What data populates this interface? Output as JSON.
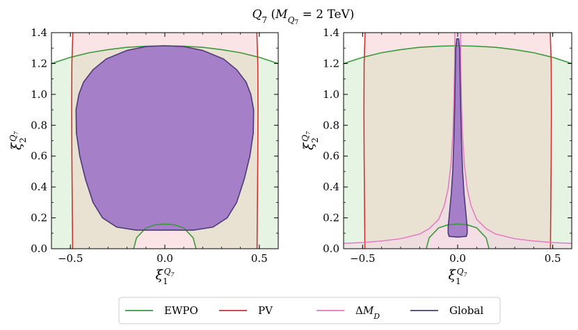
{
  "chart_data": {
    "title": "Q₇ (M_Q₇ = 2 TeV)",
    "legend": {
      "placement": "bottom-center",
      "entries": [
        {
          "key": "ewpo",
          "label": "EWPO",
          "color": "#3a9a3a"
        },
        {
          "key": "pv",
          "label": "PV",
          "color": "#cc3333"
        },
        {
          "key": "dmd",
          "label": "ΔM_D",
          "color": "#e377c2"
        },
        {
          "key": "global",
          "label": "Global",
          "color": "#4b3a75"
        }
      ]
    },
    "colors": {
      "ewpo_fill": "#e6f5e3",
      "pv_fill": "#fbe4e6",
      "overlap_fill": "#e9e2d3",
      "dmd_fill": "#f3d9e8",
      "global_fill": "#a57fc8"
    },
    "panels": [
      {
        "type": "contour",
        "name": "left",
        "xlabel": "ξ₁^{Q₇}",
        "ylabel": "ξ₂^{Q₇}",
        "xlim": [
          -0.6,
          0.6
        ],
        "ylim": [
          0.0,
          1.4
        ],
        "xticks": [
          -0.5,
          0.0,
          0.5
        ],
        "xtick_labels": [
          "−0.5",
          "0.0",
          "0.5"
        ],
        "yticks": [
          0.0,
          0.2,
          0.4,
          0.6,
          0.8,
          1.0,
          1.2,
          1.4
        ],
        "ytick_labels": [
          "0.0",
          "0.2",
          "0.4",
          "0.6",
          "0.8",
          "1.0",
          "1.2",
          "1.4"
        ],
        "ewpo_outer": [
          [
            -0.6,
            1.2
          ],
          [
            -0.5,
            1.24
          ],
          [
            -0.4,
            1.27
          ],
          [
            -0.3,
            1.29
          ],
          [
            -0.2,
            1.305
          ],
          [
            -0.1,
            1.312
          ],
          [
            0.0,
            1.315
          ],
          [
            0.1,
            1.312
          ],
          [
            0.2,
            1.305
          ],
          [
            0.3,
            1.29
          ],
          [
            0.4,
            1.27
          ],
          [
            0.5,
            1.24
          ],
          [
            0.6,
            1.2
          ]
        ],
        "ewpo_inner": [
          [
            -0.165,
            0.0
          ],
          [
            -0.15,
            0.07
          ],
          [
            -0.1,
            0.135
          ],
          [
            -0.05,
            0.155
          ],
          [
            0.0,
            0.16
          ],
          [
            0.05,
            0.155
          ],
          [
            0.1,
            0.135
          ],
          [
            0.15,
            0.07
          ],
          [
            0.165,
            0.0
          ]
        ],
        "pv_left": [
          [
            -0.488,
            0.0
          ],
          [
            -0.49,
            0.3
          ],
          [
            -0.492,
            0.6
          ],
          [
            -0.493,
            0.9
          ],
          [
            -0.492,
            1.2
          ],
          [
            -0.487,
            1.4
          ]
        ],
        "pv_right": [
          [
            0.488,
            0.0
          ],
          [
            0.49,
            0.3
          ],
          [
            0.492,
            0.6
          ],
          [
            0.493,
            0.9
          ],
          [
            0.492,
            1.2
          ],
          [
            0.487,
            1.4
          ]
        ],
        "dmd": null,
        "global": [
          [
            0.0,
            0.12
          ],
          [
            0.15,
            0.12
          ],
          [
            0.255,
            0.14
          ],
          [
            0.33,
            0.2
          ],
          [
            0.38,
            0.3
          ],
          [
            0.42,
            0.45
          ],
          [
            0.45,
            0.6
          ],
          [
            0.468,
            0.75
          ],
          [
            0.47,
            0.9
          ],
          [
            0.455,
            1.0
          ],
          [
            0.43,
            1.08
          ],
          [
            0.38,
            1.16
          ],
          [
            0.31,
            1.23
          ],
          [
            0.2,
            1.285
          ],
          [
            0.1,
            1.31
          ],
          [
            0.0,
            1.315
          ],
          [
            -0.1,
            1.31
          ],
          [
            -0.2,
            1.285
          ],
          [
            -0.31,
            1.23
          ],
          [
            -0.38,
            1.16
          ],
          [
            -0.43,
            1.08
          ],
          [
            -0.455,
            1.0
          ],
          [
            -0.47,
            0.9
          ],
          [
            -0.468,
            0.75
          ],
          [
            -0.45,
            0.6
          ],
          [
            -0.42,
            0.45
          ],
          [
            -0.38,
            0.3
          ],
          [
            -0.33,
            0.2
          ],
          [
            -0.255,
            0.14
          ],
          [
            -0.15,
            0.12
          ]
        ]
      },
      {
        "type": "contour",
        "name": "right",
        "xlabel": "ξ₁^{Q₇}",
        "ylabel": "ξ₂^{Q₇}",
        "xlim": [
          -0.6,
          0.6
        ],
        "ylim": [
          0.0,
          1.4
        ],
        "xticks": [
          -0.5,
          0.0,
          0.5
        ],
        "xtick_labels": [
          "−0.5",
          "0.0",
          "0.5"
        ],
        "yticks": [
          0.0,
          0.2,
          0.4,
          0.6,
          0.8,
          1.0,
          1.2,
          1.4
        ],
        "ytick_labels": [
          "0.0",
          "0.2",
          "0.4",
          "0.6",
          "0.8",
          "1.0",
          "1.2",
          "1.4"
        ],
        "ewpo_outer": [
          [
            -0.6,
            1.2
          ],
          [
            -0.5,
            1.24
          ],
          [
            -0.4,
            1.27
          ],
          [
            -0.3,
            1.29
          ],
          [
            -0.2,
            1.305
          ],
          [
            -0.1,
            1.312
          ],
          [
            0.0,
            1.315
          ],
          [
            0.1,
            1.312
          ],
          [
            0.2,
            1.305
          ],
          [
            0.3,
            1.29
          ],
          [
            0.4,
            1.27
          ],
          [
            0.5,
            1.24
          ],
          [
            0.6,
            1.2
          ]
        ],
        "ewpo_inner": [
          [
            -0.165,
            0.0
          ],
          [
            -0.15,
            0.07
          ],
          [
            -0.1,
            0.135
          ],
          [
            -0.05,
            0.155
          ],
          [
            0.0,
            0.16
          ],
          [
            0.05,
            0.155
          ],
          [
            0.1,
            0.135
          ],
          [
            0.15,
            0.07
          ],
          [
            0.165,
            0.0
          ]
        ],
        "pv_left": [
          [
            -0.488,
            0.0
          ],
          [
            -0.49,
            0.3
          ],
          [
            -0.492,
            0.6
          ],
          [
            -0.493,
            0.9
          ],
          [
            -0.492,
            1.2
          ],
          [
            -0.487,
            1.4
          ]
        ],
        "pv_right": [
          [
            0.488,
            0.0
          ],
          [
            0.49,
            0.3
          ],
          [
            0.492,
            0.6
          ],
          [
            0.493,
            0.9
          ],
          [
            0.492,
            1.2
          ],
          [
            0.487,
            1.4
          ]
        ],
        "dmd": {
          "left": [
            [
              -0.6,
              0.035
            ],
            [
              -0.5,
              0.04
            ],
            [
              -0.4,
              0.05
            ],
            [
              -0.3,
              0.065
            ],
            [
              -0.2,
              0.095
            ],
            [
              -0.15,
              0.13
            ],
            [
              -0.1,
              0.19
            ],
            [
              -0.07,
              0.28
            ],
            [
              -0.05,
              0.39
            ],
            [
              -0.035,
              0.55
            ],
            [
              -0.025,
              0.75
            ],
            [
              -0.02,
              0.95
            ],
            [
              -0.016,
              1.2
            ],
            [
              -0.015,
              1.4
            ]
          ],
          "right": [
            [
              0.015,
              1.4
            ],
            [
              0.016,
              1.2
            ],
            [
              0.02,
              0.95
            ],
            [
              0.025,
              0.75
            ],
            [
              0.035,
              0.55
            ],
            [
              0.05,
              0.39
            ],
            [
              0.07,
              0.28
            ],
            [
              0.1,
              0.19
            ],
            [
              0.15,
              0.13
            ],
            [
              0.2,
              0.095
            ],
            [
              0.3,
              0.065
            ],
            [
              0.4,
              0.05
            ],
            [
              0.5,
              0.04
            ],
            [
              0.6,
              0.035
            ]
          ]
        },
        "global": [
          [
            -0.005,
            1.36
          ],
          [
            0.005,
            1.36
          ],
          [
            0.01,
            1.3
          ],
          [
            0.013,
            1.1
          ],
          [
            0.016,
            0.9
          ],
          [
            0.02,
            0.7
          ],
          [
            0.026,
            0.5
          ],
          [
            0.034,
            0.35
          ],
          [
            0.044,
            0.22
          ],
          [
            0.05,
            0.14
          ],
          [
            0.05,
            0.1
          ],
          [
            0.045,
            0.08
          ],
          [
            0.0,
            0.075
          ],
          [
            -0.045,
            0.08
          ],
          [
            -0.05,
            0.1
          ],
          [
            -0.05,
            0.14
          ],
          [
            -0.044,
            0.22
          ],
          [
            -0.034,
            0.35
          ],
          [
            -0.026,
            0.5
          ],
          [
            -0.02,
            0.7
          ],
          [
            -0.016,
            0.9
          ],
          [
            -0.013,
            1.1
          ],
          [
            -0.01,
            1.3
          ]
        ]
      }
    ]
  }
}
